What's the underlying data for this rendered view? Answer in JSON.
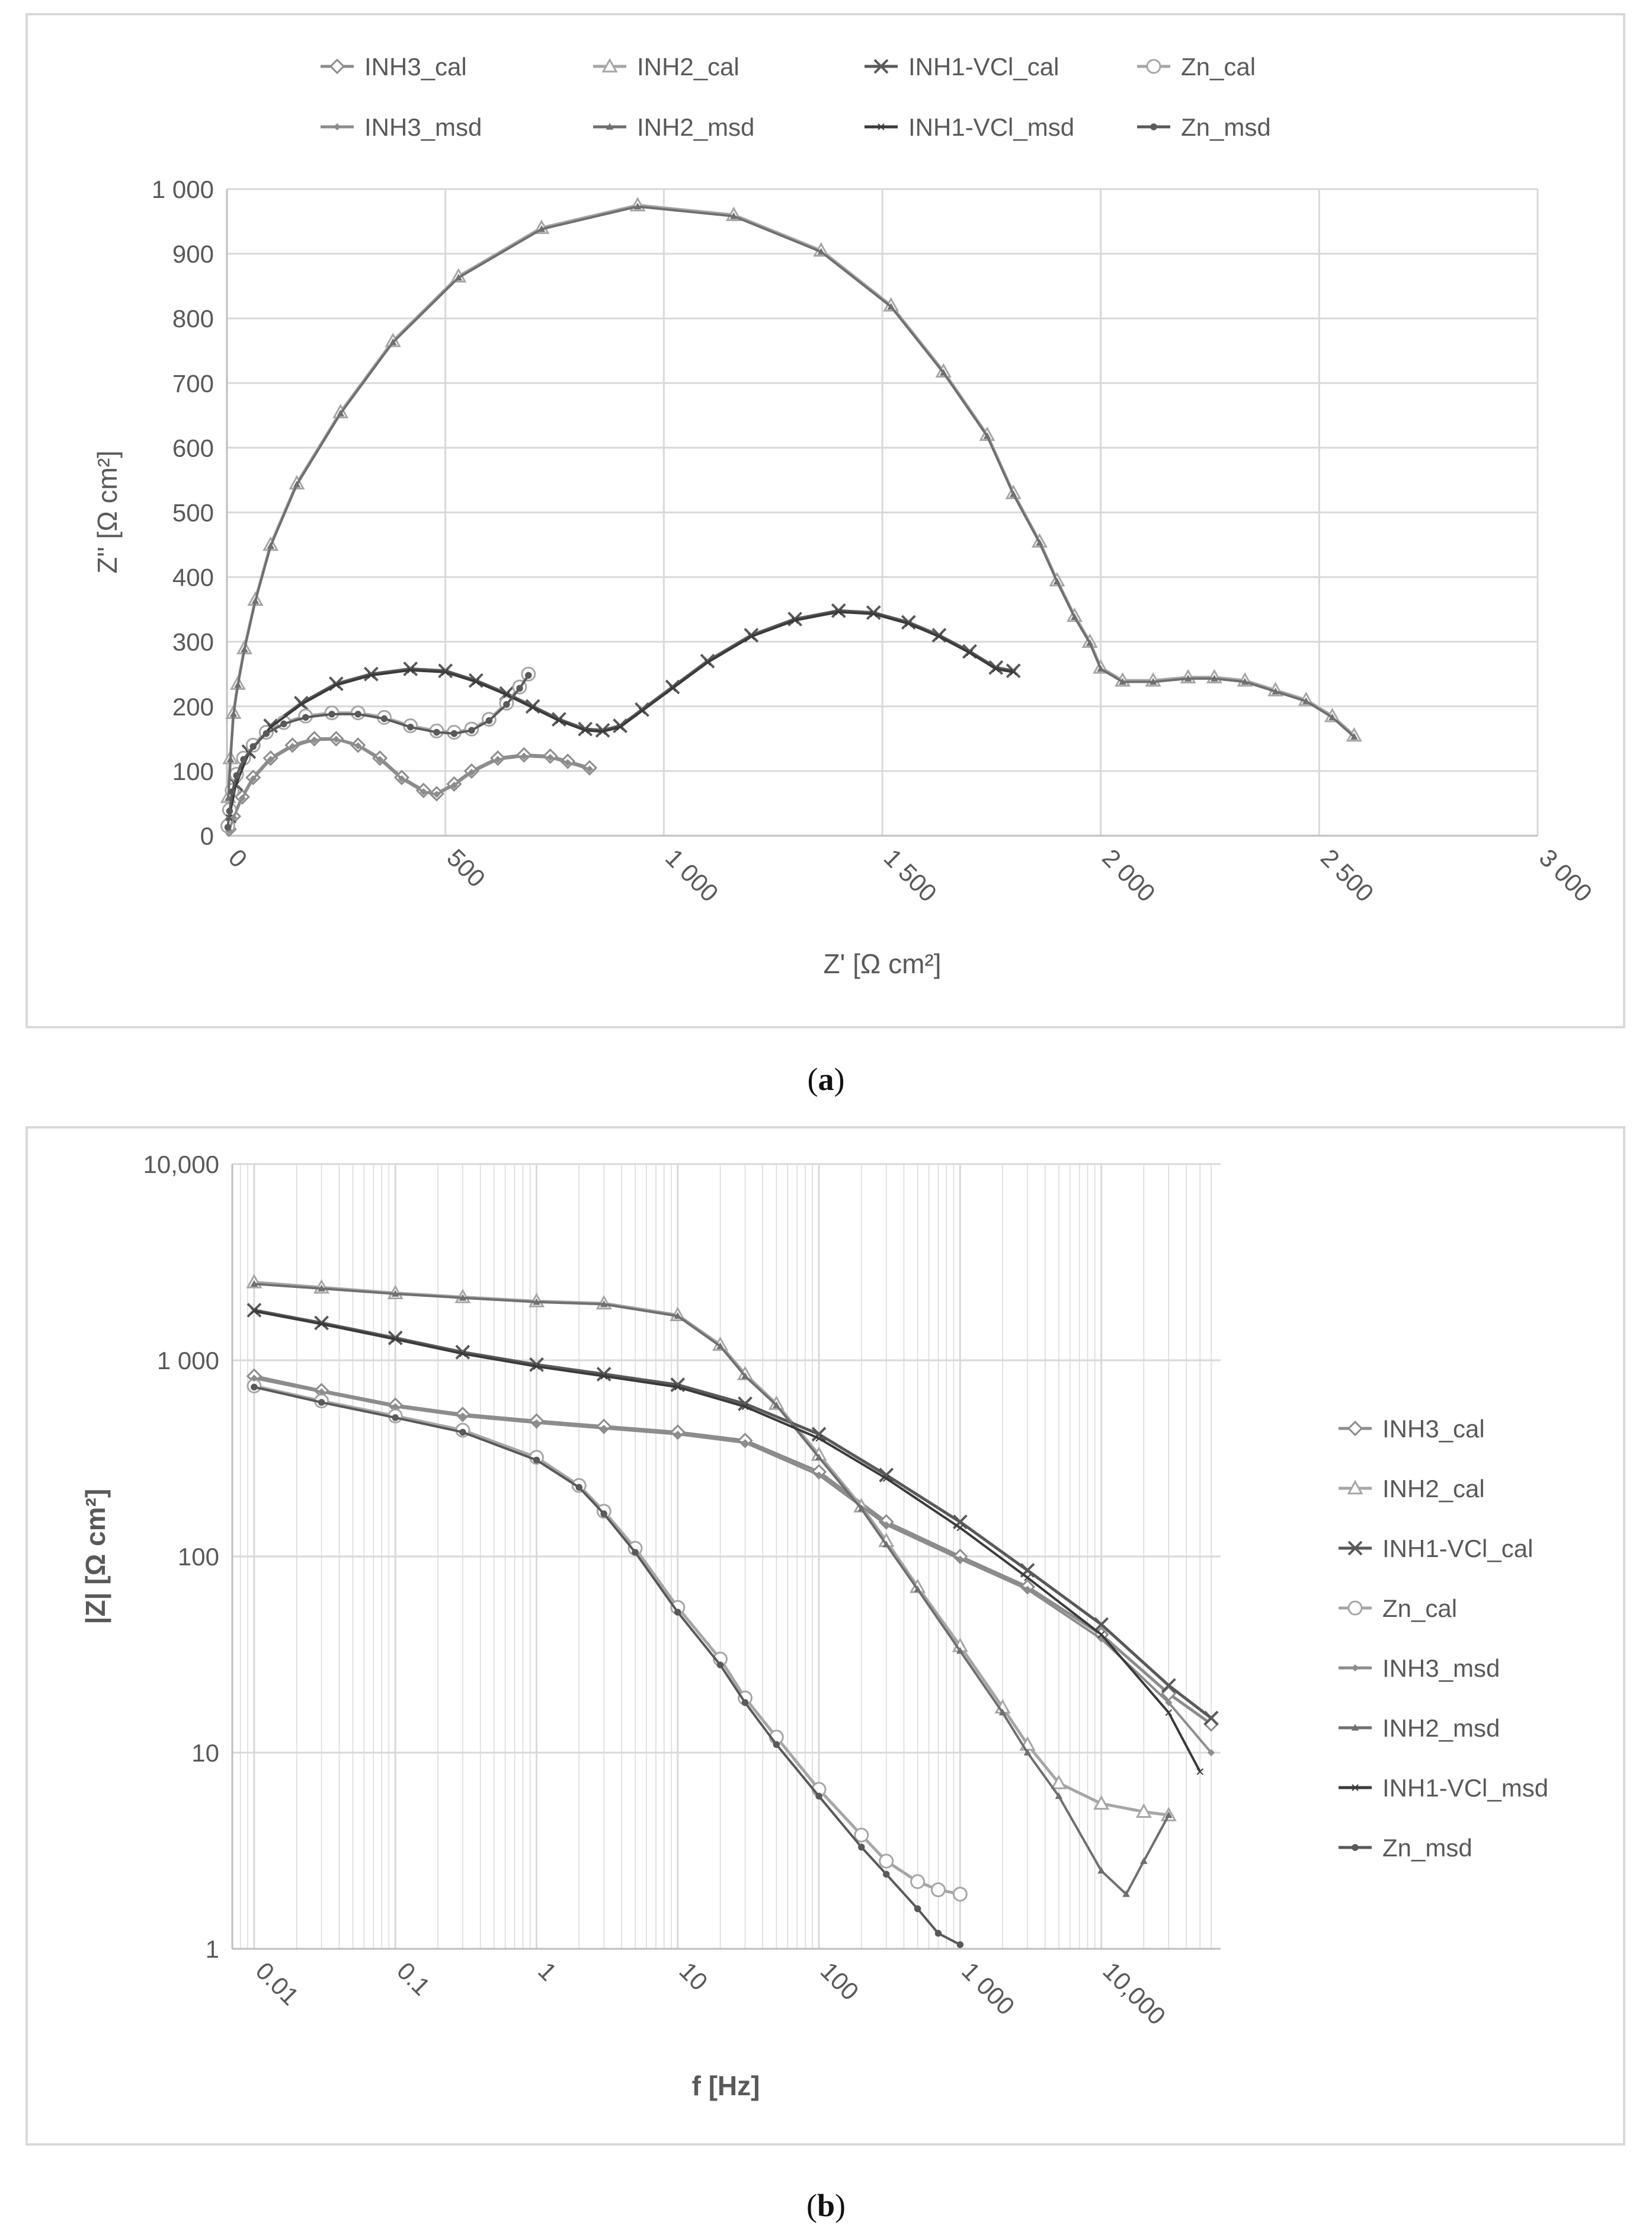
{
  "captions": {
    "a": "a",
    "b": "b"
  },
  "colors": {
    "grid": "#d9d9d9",
    "axis_text": "#595959",
    "series": {
      "INH3_cal": "#8c8c8c",
      "INH2_cal": "#a6a6a6",
      "INH1-VCl_cal": "#595959",
      "Zn_cal": "#a6a6a6",
      "INH3_msd": "#8c8c8c",
      "INH2_msd": "#6f6f6f",
      "INH1-VCl_msd": "#3a3a3a",
      "Zn_msd": "#595959"
    }
  },
  "chart_data": [
    {
      "id": "a",
      "type": "scatter",
      "title": "",
      "xlabel": "Z' [Ω cm²]",
      "ylabel": "Z'' [Ω cm²]",
      "xlim": [
        0,
        3000
      ],
      "ylim": [
        0,
        1000
      ],
      "xticks": [
        0,
        500,
        1000,
        1500,
        2000,
        2500,
        3000
      ],
      "xtick_labels": [
        "0",
        "500",
        "1 000",
        "1 500",
        "2 000",
        "2 500",
        "3 000"
      ],
      "yticks": [
        0,
        100,
        200,
        300,
        400,
        500,
        600,
        700,
        800,
        900,
        1000
      ],
      "ytick_labels": [
        "0",
        "100",
        "200",
        "300",
        "400",
        "500",
        "600",
        "700",
        "800",
        "900",
        "1 000"
      ],
      "grid": true,
      "legend_position": "top",
      "legend": [
        "INH3_cal",
        "INH2_cal",
        "INH1-VCl_cal",
        "Zn_cal",
        "INH3_msd",
        "INH2_msd",
        "INH1-VCl_msd",
        "Zn_msd"
      ],
      "series": [
        {
          "name": "INH3_cal",
          "marker": "diamond",
          "x": [
            5,
            15,
            35,
            60,
            100,
            150,
            200,
            250,
            300,
            350,
            400,
            450,
            480,
            520,
            560,
            620,
            680,
            740,
            780,
            830
          ],
          "y": [
            10,
            30,
            60,
            90,
            120,
            140,
            150,
            150,
            140,
            120,
            90,
            70,
            65,
            80,
            100,
            120,
            125,
            123,
            115,
            105
          ]
        },
        {
          "name": "INH3_msd",
          "marker": "small-diamond",
          "x": [
            5,
            15,
            35,
            60,
            100,
            150,
            200,
            250,
            300,
            350,
            400,
            450,
            480,
            520,
            560,
            620,
            680,
            740,
            780,
            830
          ],
          "y": [
            8,
            28,
            58,
            88,
            118,
            138,
            148,
            149,
            139,
            118,
            88,
            68,
            64,
            78,
            98,
            118,
            123,
            121,
            113,
            103
          ]
        },
        {
          "name": "INH2_cal",
          "marker": "triangle",
          "x": [
            3,
            8,
            15,
            25,
            40,
            65,
            100,
            160,
            260,
            380,
            530,
            720,
            940,
            1160,
            1360,
            1520,
            1640,
            1740,
            1800,
            1860,
            1900,
            1940,
            1975,
            2000,
            2050,
            2120,
            2200,
            2260,
            2330,
            2400,
            2470,
            2530,
            2580
          ],
          "y": [
            60,
            120,
            190,
            235,
            290,
            365,
            450,
            545,
            655,
            765,
            865,
            940,
            975,
            960,
            905,
            820,
            718,
            620,
            530,
            455,
            395,
            340,
            300,
            260,
            240,
            240,
            245,
            245,
            240,
            225,
            210,
            185,
            155
          ]
        },
        {
          "name": "INH2_msd",
          "marker": "small-triangle",
          "x": [
            3,
            8,
            15,
            25,
            40,
            65,
            100,
            160,
            260,
            380,
            530,
            720,
            940,
            1160,
            1360,
            1520,
            1640,
            1740,
            1800,
            1860,
            1900,
            1940,
            1975,
            2000,
            2050,
            2120,
            2200,
            2260,
            2330,
            2400,
            2470,
            2530,
            2580
          ],
          "y": [
            58,
            118,
            188,
            233,
            288,
            363,
            448,
            543,
            653,
            763,
            863,
            938,
            973,
            958,
            903,
            818,
            716,
            618,
            528,
            453,
            393,
            338,
            298,
            258,
            238,
            238,
            243,
            243,
            238,
            223,
            208,
            183,
            153
          ]
        },
        {
          "name": "INH1-VCl_cal",
          "marker": "x",
          "x": [
            5,
            20,
            50,
            100,
            170,
            250,
            330,
            420,
            500,
            570,
            640,
            700,
            760,
            820,
            860,
            900,
            950,
            1020,
            1100,
            1200,
            1300,
            1400,
            1480,
            1560,
            1630,
            1700,
            1760,
            1800
          ],
          "y": [
            30,
            80,
            130,
            170,
            205,
            235,
            250,
            258,
            255,
            240,
            220,
            200,
            180,
            165,
            163,
            170,
            195,
            230,
            270,
            310,
            335,
            348,
            345,
            330,
            310,
            285,
            260,
            255
          ]
        },
        {
          "name": "INH1-VCl_msd",
          "marker": "small-x",
          "x": [
            5,
            20,
            50,
            100,
            170,
            250,
            330,
            420,
            500,
            570,
            640,
            700,
            760,
            820,
            860,
            900,
            950,
            1020,
            1100,
            1200,
            1300,
            1400,
            1480,
            1560,
            1630,
            1700,
            1760,
            1800
          ],
          "y": [
            28,
            78,
            128,
            168,
            203,
            233,
            248,
            256,
            253,
            238,
            218,
            198,
            178,
            163,
            161,
            168,
            193,
            228,
            268,
            308,
            333,
            346,
            343,
            328,
            308,
            283,
            258,
            253
          ]
        },
        {
          "name": "Zn_cal",
          "marker": "circle",
          "x": [
            2,
            6,
            12,
            22,
            38,
            60,
            90,
            130,
            180,
            240,
            300,
            360,
            420,
            480,
            520,
            560,
            600,
            640,
            670,
            690
          ],
          "y": [
            15,
            40,
            70,
            95,
            120,
            140,
            160,
            175,
            185,
            190,
            190,
            183,
            170,
            162,
            160,
            165,
            180,
            205,
            230,
            250
          ]
        },
        {
          "name": "Zn_msd",
          "marker": "small-circle",
          "x": [
            2,
            6,
            12,
            22,
            38,
            60,
            90,
            130,
            180,
            240,
            300,
            360,
            420,
            480,
            520,
            560,
            600,
            640,
            670,
            690
          ],
          "y": [
            13,
            38,
            68,
            93,
            118,
            138,
            158,
            173,
            183,
            188,
            188,
            181,
            168,
            160,
            158,
            163,
            178,
            203,
            228,
            248
          ]
        }
      ]
    },
    {
      "id": "b",
      "type": "line",
      "title": "",
      "xlabel": "f [Hz]",
      "ylabel": "|Z| [Ω cm²]",
      "xscale": "log",
      "yscale": "log",
      "xlim": [
        0.007,
        70000
      ],
      "ylim": [
        1,
        10000
      ],
      "xticks": [
        0.01,
        0.1,
        1,
        10,
        100,
        1000,
        10000
      ],
      "xtick_labels": [
        "0.01",
        "0.1",
        "1",
        "10",
        "100",
        "1 000",
        "10,000"
      ],
      "yticks": [
        1,
        10,
        100,
        1000,
        10000
      ],
      "ytick_labels": [
        "1",
        "10",
        "100",
        "1 000",
        "10,000"
      ],
      "grid": true,
      "legend_position": "right",
      "legend": [
        "INH3_cal",
        "INH2_cal",
        "INH1-VCl_cal",
        "Zn_cal",
        "INH3_msd",
        "INH2_msd",
        "INH1-VCl_msd",
        "Zn_msd"
      ],
      "series": [
        {
          "name": "INH3_cal",
          "marker": "diamond",
          "x": [
            0.01,
            0.03,
            0.1,
            0.3,
            1,
            3,
            10,
            30,
            100,
            300,
            1000,
            3000,
            10000,
            30000,
            60000
          ],
          "y": [
            830,
            700,
            590,
            530,
            490,
            460,
            430,
            390,
            270,
            150,
            100,
            70,
            40,
            20,
            14
          ]
        },
        {
          "name": "INH3_msd",
          "marker": "small-diamond",
          "x": [
            0.01,
            0.03,
            0.1,
            0.3,
            1,
            3,
            10,
            30,
            100,
            300,
            1000,
            3000,
            10000,
            30000,
            60000
          ],
          "y": [
            810,
            690,
            580,
            520,
            480,
            450,
            420,
            380,
            260,
            145,
            97,
            68,
            38,
            18,
            10
          ]
        },
        {
          "name": "INH2_cal",
          "marker": "triangle",
          "x": [
            0.01,
            0.03,
            0.1,
            0.3,
            1,
            3,
            10,
            20,
            30,
            50,
            100,
            200,
            300,
            500,
            1000,
            2000,
            3000,
            5000,
            10000,
            20000,
            30000
          ],
          "y": [
            2500,
            2350,
            2200,
            2100,
            2000,
            1950,
            1700,
            1200,
            850,
            600,
            330,
            180,
            120,
            70,
            35,
            17,
            11,
            7,
            5.5,
            5,
            4.8
          ]
        },
        {
          "name": "INH2_msd",
          "marker": "small-triangle",
          "x": [
            0.01,
            0.03,
            0.1,
            0.3,
            1,
            3,
            10,
            20,
            30,
            50,
            100,
            200,
            300,
            500,
            1000,
            2000,
            3000,
            5000,
            10000,
            15000,
            20000,
            30000
          ],
          "y": [
            2450,
            2320,
            2180,
            2080,
            1980,
            1930,
            1680,
            1180,
            830,
            590,
            320,
            175,
            115,
            68,
            33,
            16,
            10,
            6,
            2.5,
            1.9,
            2.8,
            4.8
          ]
        },
        {
          "name": "INH1-VCl_cal",
          "marker": "x",
          "x": [
            0.01,
            0.03,
            0.1,
            0.3,
            1,
            3,
            10,
            30,
            100,
            300,
            1000,
            3000,
            10000,
            30000,
            60000
          ],
          "y": [
            1800,
            1550,
            1300,
            1100,
            950,
            850,
            750,
            600,
            420,
            260,
            150,
            85,
            45,
            22,
            15
          ]
        },
        {
          "name": "INH1-VCl_msd",
          "marker": "small-x",
          "x": [
            0.01,
            0.03,
            0.1,
            0.3,
            1,
            3,
            10,
            30,
            100,
            300,
            1000,
            3000,
            10000,
            30000,
            50000
          ],
          "y": [
            1780,
            1530,
            1280,
            1080,
            930,
            830,
            730,
            580,
            400,
            250,
            140,
            78,
            40,
            16,
            8
          ]
        },
        {
          "name": "Zn_cal",
          "marker": "circle",
          "x": [
            0.01,
            0.03,
            0.1,
            0.3,
            1,
            2,
            3,
            5,
            10,
            20,
            30,
            50,
            100,
            200,
            300,
            500,
            700,
            1000
          ],
          "y": [
            740,
            620,
            520,
            440,
            320,
            230,
            170,
            110,
            55,
            30,
            19,
            12,
            6.5,
            3.8,
            2.8,
            2.2,
            2,
            1.9
          ]
        },
        {
          "name": "Zn_msd",
          "marker": "small-circle",
          "x": [
            0.01,
            0.03,
            0.1,
            0.3,
            1,
            2,
            3,
            5,
            10,
            20,
            30,
            50,
            100,
            200,
            300,
            500,
            700,
            1000
          ],
          "y": [
            730,
            610,
            510,
            430,
            310,
            225,
            165,
            105,
            52,
            28,
            18,
            11,
            6,
            3.3,
            2.4,
            1.6,
            1.2,
            1.05
          ]
        }
      ]
    }
  ]
}
